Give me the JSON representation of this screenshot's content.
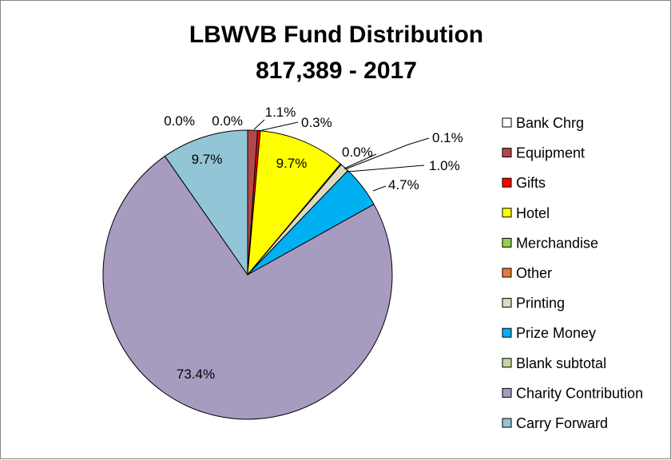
{
  "chart_data": {
    "type": "pie",
    "title": "LBWVB Fund Distribution",
    "subtitle": "817,389 - 2017",
    "categories": [
      "Bank Chrg",
      "Equipment",
      "Gifts",
      "Hotel",
      "Merchandise",
      "Other",
      "Printing",
      "Prize Money",
      "Blank subtotal",
      "Charity Contribution",
      "Carry Forward"
    ],
    "values": [
      0.0,
      1.1,
      0.3,
      9.7,
      0.0,
      0.1,
      1.0,
      4.7,
      0.0,
      73.4,
      9.7
    ],
    "labels": [
      "0.0%",
      "1.1%",
      "0.3%",
      "9.7%",
      "0.0%",
      "0.1%",
      "1.0%",
      "4.7%",
      "0.0%",
      "73.4%",
      "9.7%"
    ],
    "colors": [
      "#ffffff",
      "#b3474b",
      "#ff0000",
      "#ffff00",
      "#92d050",
      "#e07b39",
      "#ddd9c4",
      "#00b0f0",
      "#c4d79b",
      "#a89bc0",
      "#92c5d6"
    ],
    "legend_position": "right"
  }
}
